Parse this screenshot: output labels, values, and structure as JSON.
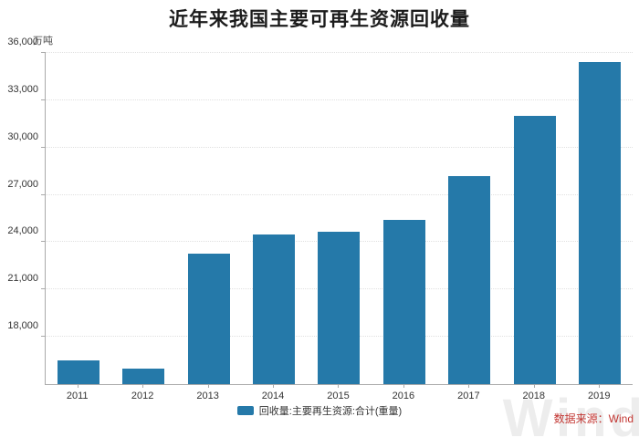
{
  "chart_data": {
    "type": "bar",
    "title": "近年来我国主要可再生资源回收量",
    "unit_label": "万吨",
    "categories": [
      "2011",
      "2012",
      "2013",
      "2014",
      "2015",
      "2016",
      "2017",
      "2018",
      "2019"
    ],
    "values": [
      16500,
      16000,
      23300,
      24500,
      24650,
      25400,
      28200,
      32000,
      35400
    ],
    "series_name": "回收量:主要再生资源:合计(重量)",
    "xlabel": "",
    "ylabel": "万吨",
    "ylim": [
      15000,
      36000
    ],
    "yticks": [
      18000,
      21000,
      24000,
      27000,
      30000,
      33000,
      36000
    ],
    "grid": "horizontal-dotted",
    "legend_position": "bottom-center",
    "bar_color": "#2579a9"
  },
  "footer": {
    "source_label": "数据来源：Wind",
    "source_color": "#c23531",
    "watermark_text": "Wind"
  }
}
